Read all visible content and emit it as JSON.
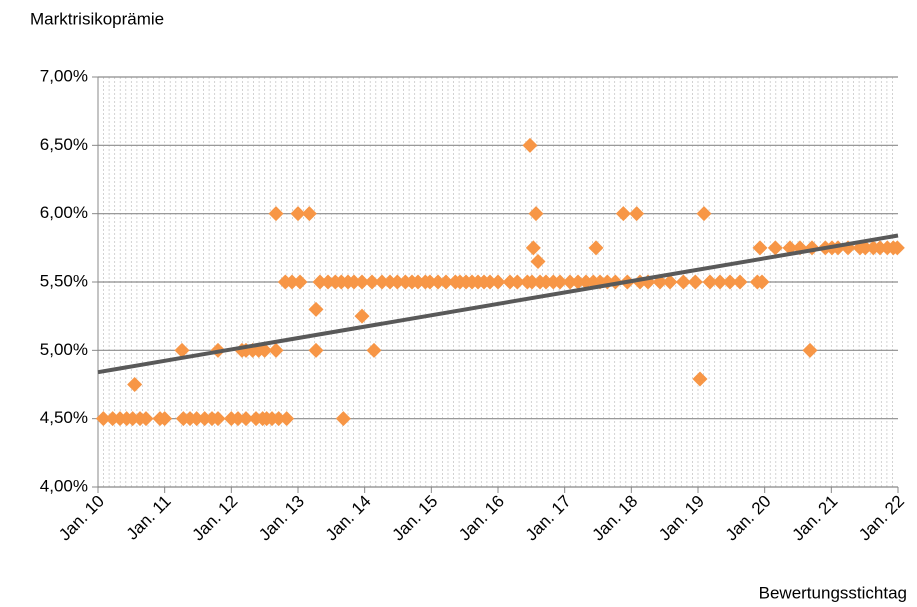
{
  "chart_data": {
    "type": "scatter",
    "y_label": "Marktrisikoprämie",
    "x_label": "Bewertungsstichtag",
    "xlim": [
      10,
      22
    ],
    "xticks": [
      {
        "value": 10,
        "label": "Jan. 10"
      },
      {
        "value": 11,
        "label": "Jan. 11"
      },
      {
        "value": 12,
        "label": "Jan. 12"
      },
      {
        "value": 13,
        "label": "Jan. 13"
      },
      {
        "value": 14,
        "label": "Jan. 14"
      },
      {
        "value": 15,
        "label": "Jan. 15"
      },
      {
        "value": 16,
        "label": "Jan. 16"
      },
      {
        "value": 17,
        "label": "Jan. 17"
      },
      {
        "value": 18,
        "label": "Jan. 18"
      },
      {
        "value": 19,
        "label": "Jan. 19"
      },
      {
        "value": 20,
        "label": "Jan. 20"
      },
      {
        "value": 21,
        "label": "Jan. 21"
      },
      {
        "value": 22,
        "label": "Jan. 22"
      }
    ],
    "ylim": [
      4,
      7
    ],
    "yticks": [
      {
        "value": 4,
        "label": "4,00%"
      },
      {
        "value": 4.5,
        "label": "4,50%"
      },
      {
        "value": 5,
        "label": "5,00%"
      },
      {
        "value": 5.5,
        "label": "5,50%"
      },
      {
        "value": 6,
        "label": "6,00%"
      },
      {
        "value": 6.5,
        "label": "6,50%"
      },
      {
        "value": 7,
        "label": "7,00%"
      }
    ],
    "grid": true,
    "minor_grid": true,
    "series": [
      {
        "color": "#f79646",
        "x": [
          10.08,
          10.22,
          10.33,
          10.43,
          10.52,
          10.63,
          10.72,
          10.93,
          11.0,
          11.28,
          11.38,
          11.48,
          11.6,
          11.71,
          11.8,
          12.0,
          12.1,
          12.22,
          12.37,
          12.47,
          12.53,
          12.61,
          12.71,
          12.83,
          13.68
        ],
        "values": [
          4.5,
          4.5,
          4.5,
          4.5,
          4.5,
          4.5,
          4.5,
          4.5,
          4.5,
          4.5,
          4.5,
          4.5,
          4.5,
          4.5,
          4.5,
          4.5,
          4.5,
          4.5,
          4.5,
          4.5,
          4.5,
          4.5,
          4.5,
          4.5,
          4.5
        ]
      },
      {
        "color": "#f79646",
        "x": [
          11.26,
          11.8,
          12.16,
          12.22,
          12.32,
          12.41,
          12.5,
          12.67,
          13.27,
          14.14,
          20.68
        ],
        "values": [
          5,
          5,
          5,
          5,
          5,
          5,
          5,
          5,
          5,
          5,
          5
        ]
      },
      {
        "color": "#f79646",
        "x": [
          10.55,
          19.03,
          13.96,
          13.27,
          16.6,
          16.48
        ],
        "values": [
          4.75,
          4.79,
          5.25,
          5.3,
          5.65,
          6.5
        ]
      },
      {
        "color": "#f79646",
        "x": [
          12.81,
          12.91,
          13.03,
          13.33,
          13.45,
          13.56,
          13.65,
          13.75,
          13.84,
          13.96,
          14.11,
          14.26,
          14.38,
          14.49,
          14.61,
          14.71,
          14.8,
          14.91,
          14.98,
          15.1,
          15.22,
          15.36,
          15.43,
          15.52,
          15.61,
          15.7,
          15.79,
          15.88,
          16.0,
          16.18,
          16.29,
          16.44,
          16.51,
          16.63,
          16.72,
          16.83,
          16.93,
          17.08,
          17.2,
          17.32,
          17.43,
          17.53,
          17.64,
          17.76,
          17.94,
          18.13,
          18.25,
          18.43,
          18.58,
          18.78,
          18.96,
          19.18,
          19.33,
          19.48,
          19.63,
          19.89,
          19.96
        ],
        "values": [
          5.5,
          5.5,
          5.5,
          5.5,
          5.5,
          5.5,
          5.5,
          5.5,
          5.5,
          5.5,
          5.5,
          5.5,
          5.5,
          5.5,
          5.5,
          5.5,
          5.5,
          5.5,
          5.5,
          5.5,
          5.5,
          5.5,
          5.5,
          5.5,
          5.5,
          5.5,
          5.5,
          5.5,
          5.5,
          5.5,
          5.5,
          5.5,
          5.5,
          5.5,
          5.5,
          5.5,
          5.5,
          5.5,
          5.5,
          5.5,
          5.5,
          5.5,
          5.5,
          5.5,
          5.5,
          5.5,
          5.5,
          5.5,
          5.5,
          5.5,
          5.5,
          5.5,
          5.5,
          5.5,
          5.5,
          5.5,
          5.5
        ]
      },
      {
        "color": "#f79646",
        "x": [
          16.53,
          17.47,
          19.93,
          20.16,
          20.38,
          20.53,
          20.71,
          20.91,
          21.01,
          21.1,
          21.25,
          21.43,
          21.51,
          21.63,
          21.73,
          21.84,
          21.93,
          21.99
        ],
        "values": [
          5.75,
          5.75,
          5.75,
          5.75,
          5.75,
          5.75,
          5.75,
          5.75,
          5.75,
          5.75,
          5.75,
          5.75,
          5.75,
          5.75,
          5.75,
          5.75,
          5.75,
          5.75
        ]
      },
      {
        "color": "#f79646",
        "x": [
          12.67,
          13.0,
          13.17,
          16.57,
          17.88,
          18.08,
          19.09
        ],
        "values": [
          6,
          6,
          6,
          6,
          6,
          6,
          6
        ]
      }
    ],
    "trendline": {
      "color": "#595959",
      "x": [
        10,
        22
      ],
      "values": [
        4.84,
        5.84
      ]
    }
  }
}
